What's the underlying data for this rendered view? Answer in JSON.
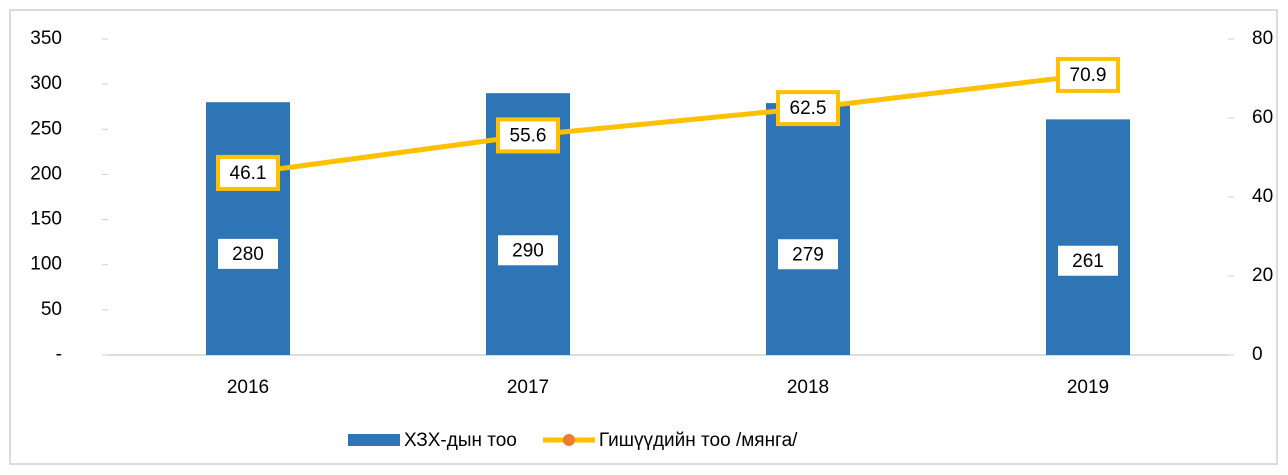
{
  "chart_data": {
    "type": "bar_line",
    "categories": [
      "2016",
      "2017",
      "2018",
      "2019"
    ],
    "series": [
      {
        "name": "ХЗХ-дын тоо",
        "type": "bar",
        "color": "#2e75b6",
        "values": [
          280,
          290,
          279,
          261
        ]
      },
      {
        "name": "Гишүүдийн тоо /мянга/",
        "type": "line",
        "axis": "y2",
        "color": "#ffc000",
        "legend_marker_color": "#ed7d31",
        "values": [
          46.1,
          55.6,
          62.5,
          70.9
        ]
      }
    ],
    "ylim": [
      0,
      350
    ],
    "yticks": [
      {
        "value": 0,
        "label": "-"
      },
      50,
      100,
      150,
      200,
      250,
      300,
      350
    ],
    "y2lim": [
      0,
      80
    ],
    "y2ticks": [
      0,
      20,
      40,
      60,
      80
    ],
    "legend": "bottom"
  }
}
